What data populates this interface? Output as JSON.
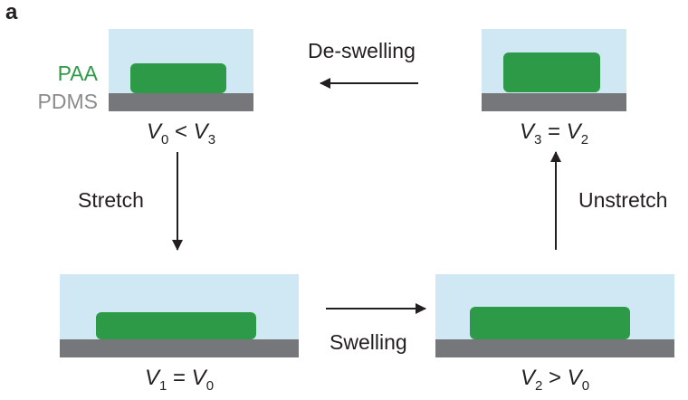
{
  "panel_label": "a",
  "legend": {
    "gel": "PAA",
    "substrate": "PDMS"
  },
  "steps": {
    "stretch": "Stretch",
    "swelling": "Swelling",
    "unstretch": "Unstretch",
    "deswelling": "De-swelling"
  },
  "states": {
    "s0": {
      "left": "V",
      "left_sub": "0",
      "relation": "<",
      "right": "V",
      "right_sub": "3"
    },
    "s1": {
      "left": "V",
      "left_sub": "1",
      "relation": "=",
      "right": "V",
      "right_sub": "0"
    },
    "s2": {
      "left": "V",
      "left_sub": "2",
      "relation": ">",
      "right": "V",
      "right_sub": "0"
    },
    "s3": {
      "left": "V",
      "left_sub": "3",
      "relation": "=",
      "right": "V",
      "right_sub": "2"
    }
  },
  "colors": {
    "solvent": "#cfe8f3",
    "gel": "#2d9a47",
    "substrate": "#76777a",
    "text": "#231f20"
  }
}
